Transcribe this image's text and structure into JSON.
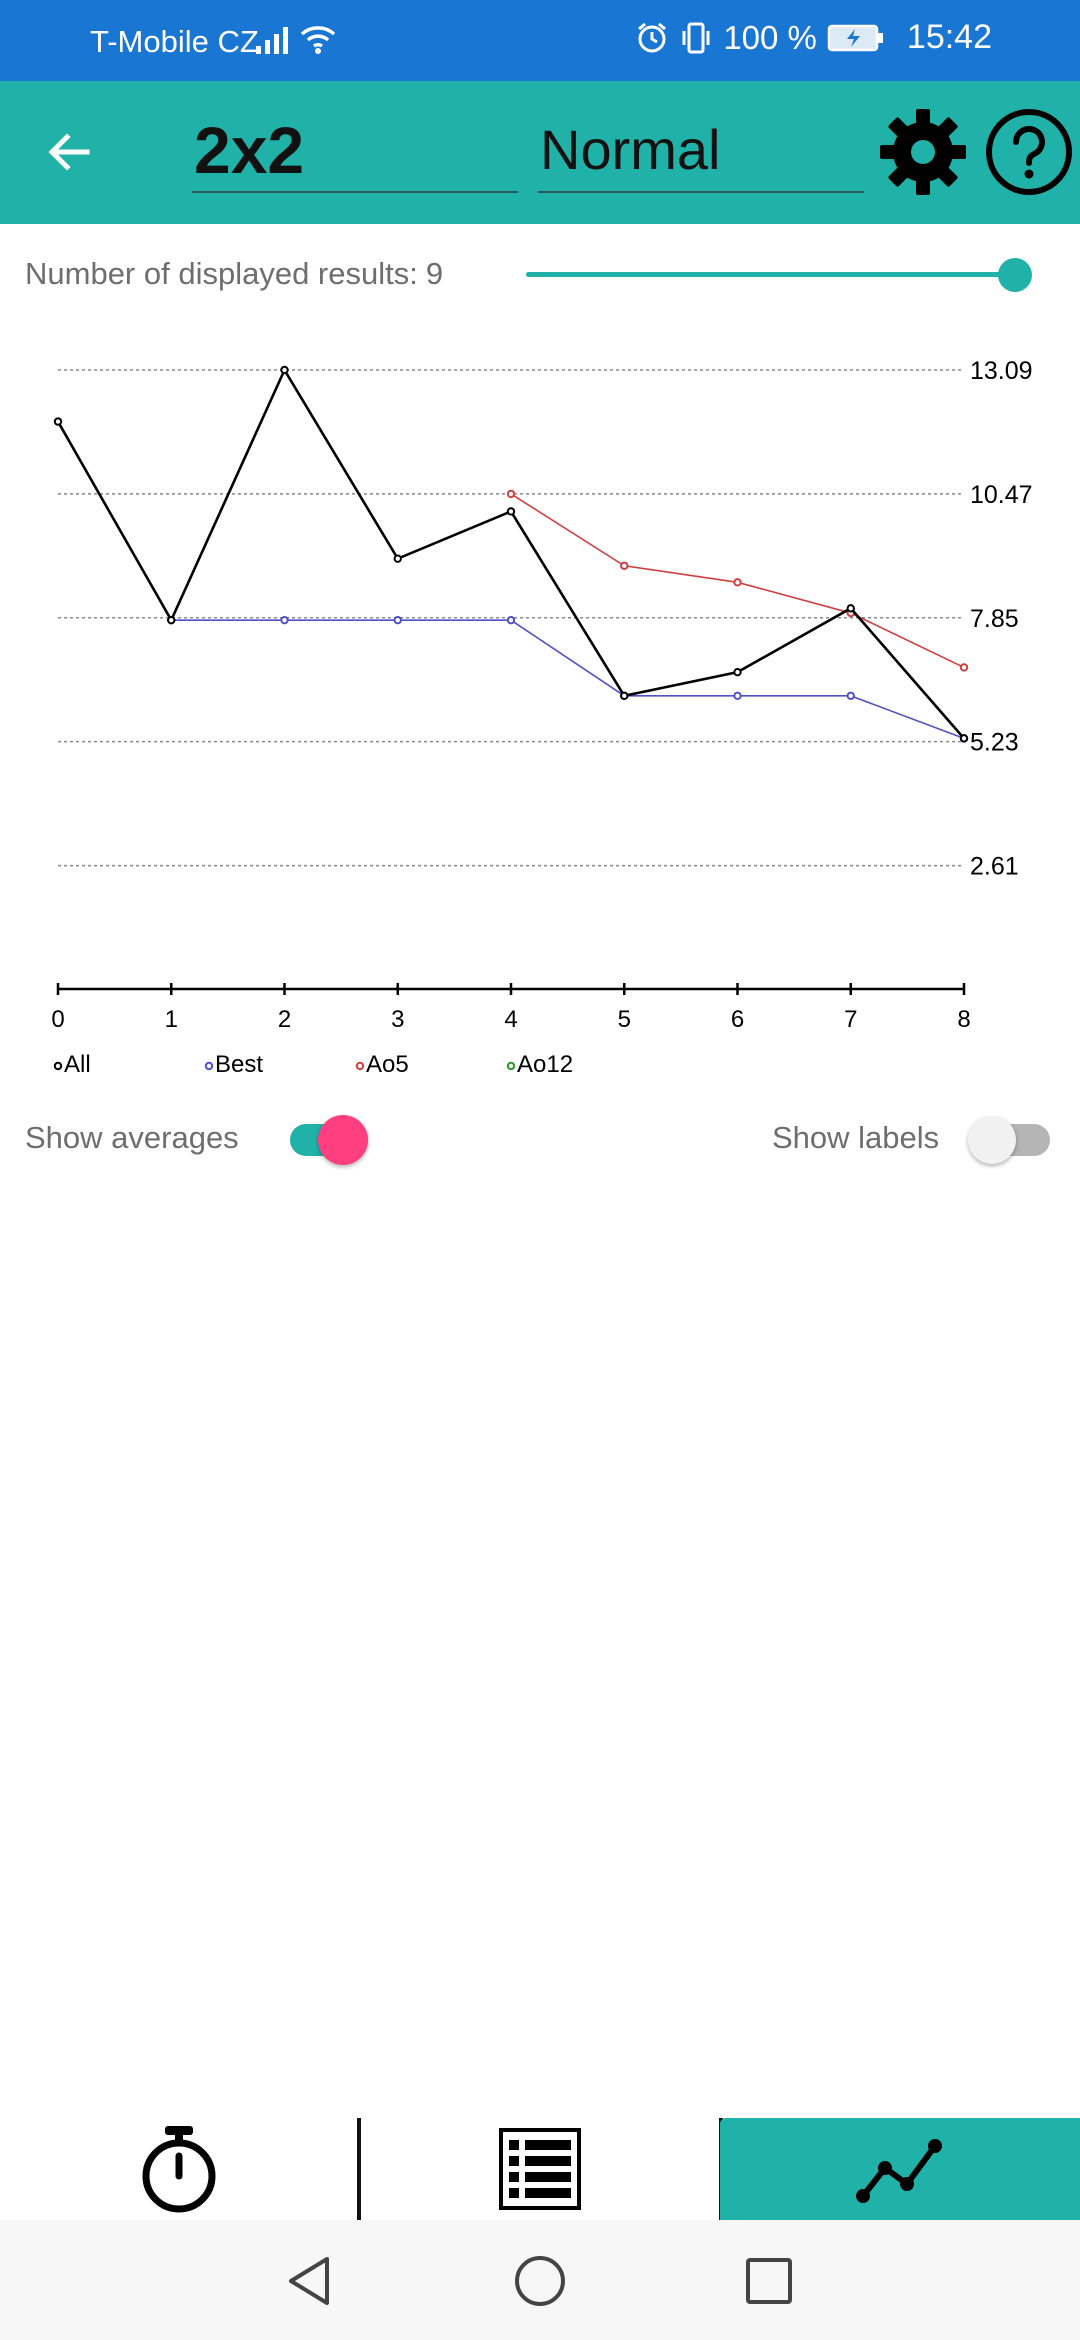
{
  "status_bar": {
    "carrier": "T-Mobile CZ",
    "battery_percent": "100 %",
    "time": "15:42",
    "icons": [
      "signal-icon",
      "wifi-icon",
      "alarm-icon",
      "vibrate-icon",
      "battery-charging-icon"
    ]
  },
  "app_bar": {
    "back_icon": "arrow-left-icon",
    "puzzle_value": "2x2",
    "mode_value": "Normal",
    "settings_icon": "gear-icon",
    "help_icon": "help-icon",
    "color": "#20b2a8"
  },
  "results": {
    "label": "Number of displayed results:",
    "value": "9",
    "slider_fraction": 1.0
  },
  "chart_data": {
    "type": "line",
    "x": [
      0,
      1,
      2,
      3,
      4,
      5,
      6,
      7,
      8
    ],
    "x_tick_labels": [
      "0",
      "1",
      "2",
      "3",
      "4",
      "5",
      "6",
      "7",
      "8"
    ],
    "y_tick_labels": [
      "13.09",
      "10.47",
      "7.85",
      "5.23",
      "2.61"
    ],
    "y_ticks": [
      13.09,
      10.47,
      7.85,
      5.23,
      2.61
    ],
    "ylim": [
      0,
      13.09
    ],
    "grid": "horizontal dotted",
    "legend_position": "bottom-left",
    "series": [
      {
        "name": "All",
        "color": "#000000",
        "x": [
          0,
          1,
          2,
          3,
          4,
          5,
          6,
          7,
          8
        ],
        "values": [
          12.0,
          7.8,
          13.09,
          9.1,
          10.1,
          6.2,
          6.7,
          8.05,
          5.3
        ]
      },
      {
        "name": "Best",
        "color": "#5050c8",
        "x": [
          0,
          1,
          2,
          3,
          4,
          5,
          6,
          7,
          8
        ],
        "values": [
          12.0,
          7.8,
          7.8,
          7.8,
          7.8,
          6.2,
          6.2,
          6.2,
          5.3
        ]
      },
      {
        "name": "Ao5",
        "color": "#d04040",
        "x": [
          4,
          5,
          6,
          7,
          8
        ],
        "values": [
          10.47,
          8.95,
          8.6,
          7.95,
          6.8
        ]
      },
      {
        "name": "Ao12",
        "color": "#2a9a2a",
        "x": [],
        "values": []
      }
    ]
  },
  "toggles": {
    "averages_label": "Show averages",
    "averages_on": true,
    "labels_label": "Show labels",
    "labels_on": false,
    "on_thumb_color": "#ff3f7f"
  },
  "bottom_tabs": [
    {
      "icon": "stopwatch-icon",
      "selected": false
    },
    {
      "icon": "list-icon",
      "selected": false
    },
    {
      "icon": "line-chart-icon",
      "selected": true
    }
  ],
  "nav_bar": {
    "icons": [
      "nav-back-icon",
      "nav-home-icon",
      "nav-recents-icon"
    ]
  }
}
